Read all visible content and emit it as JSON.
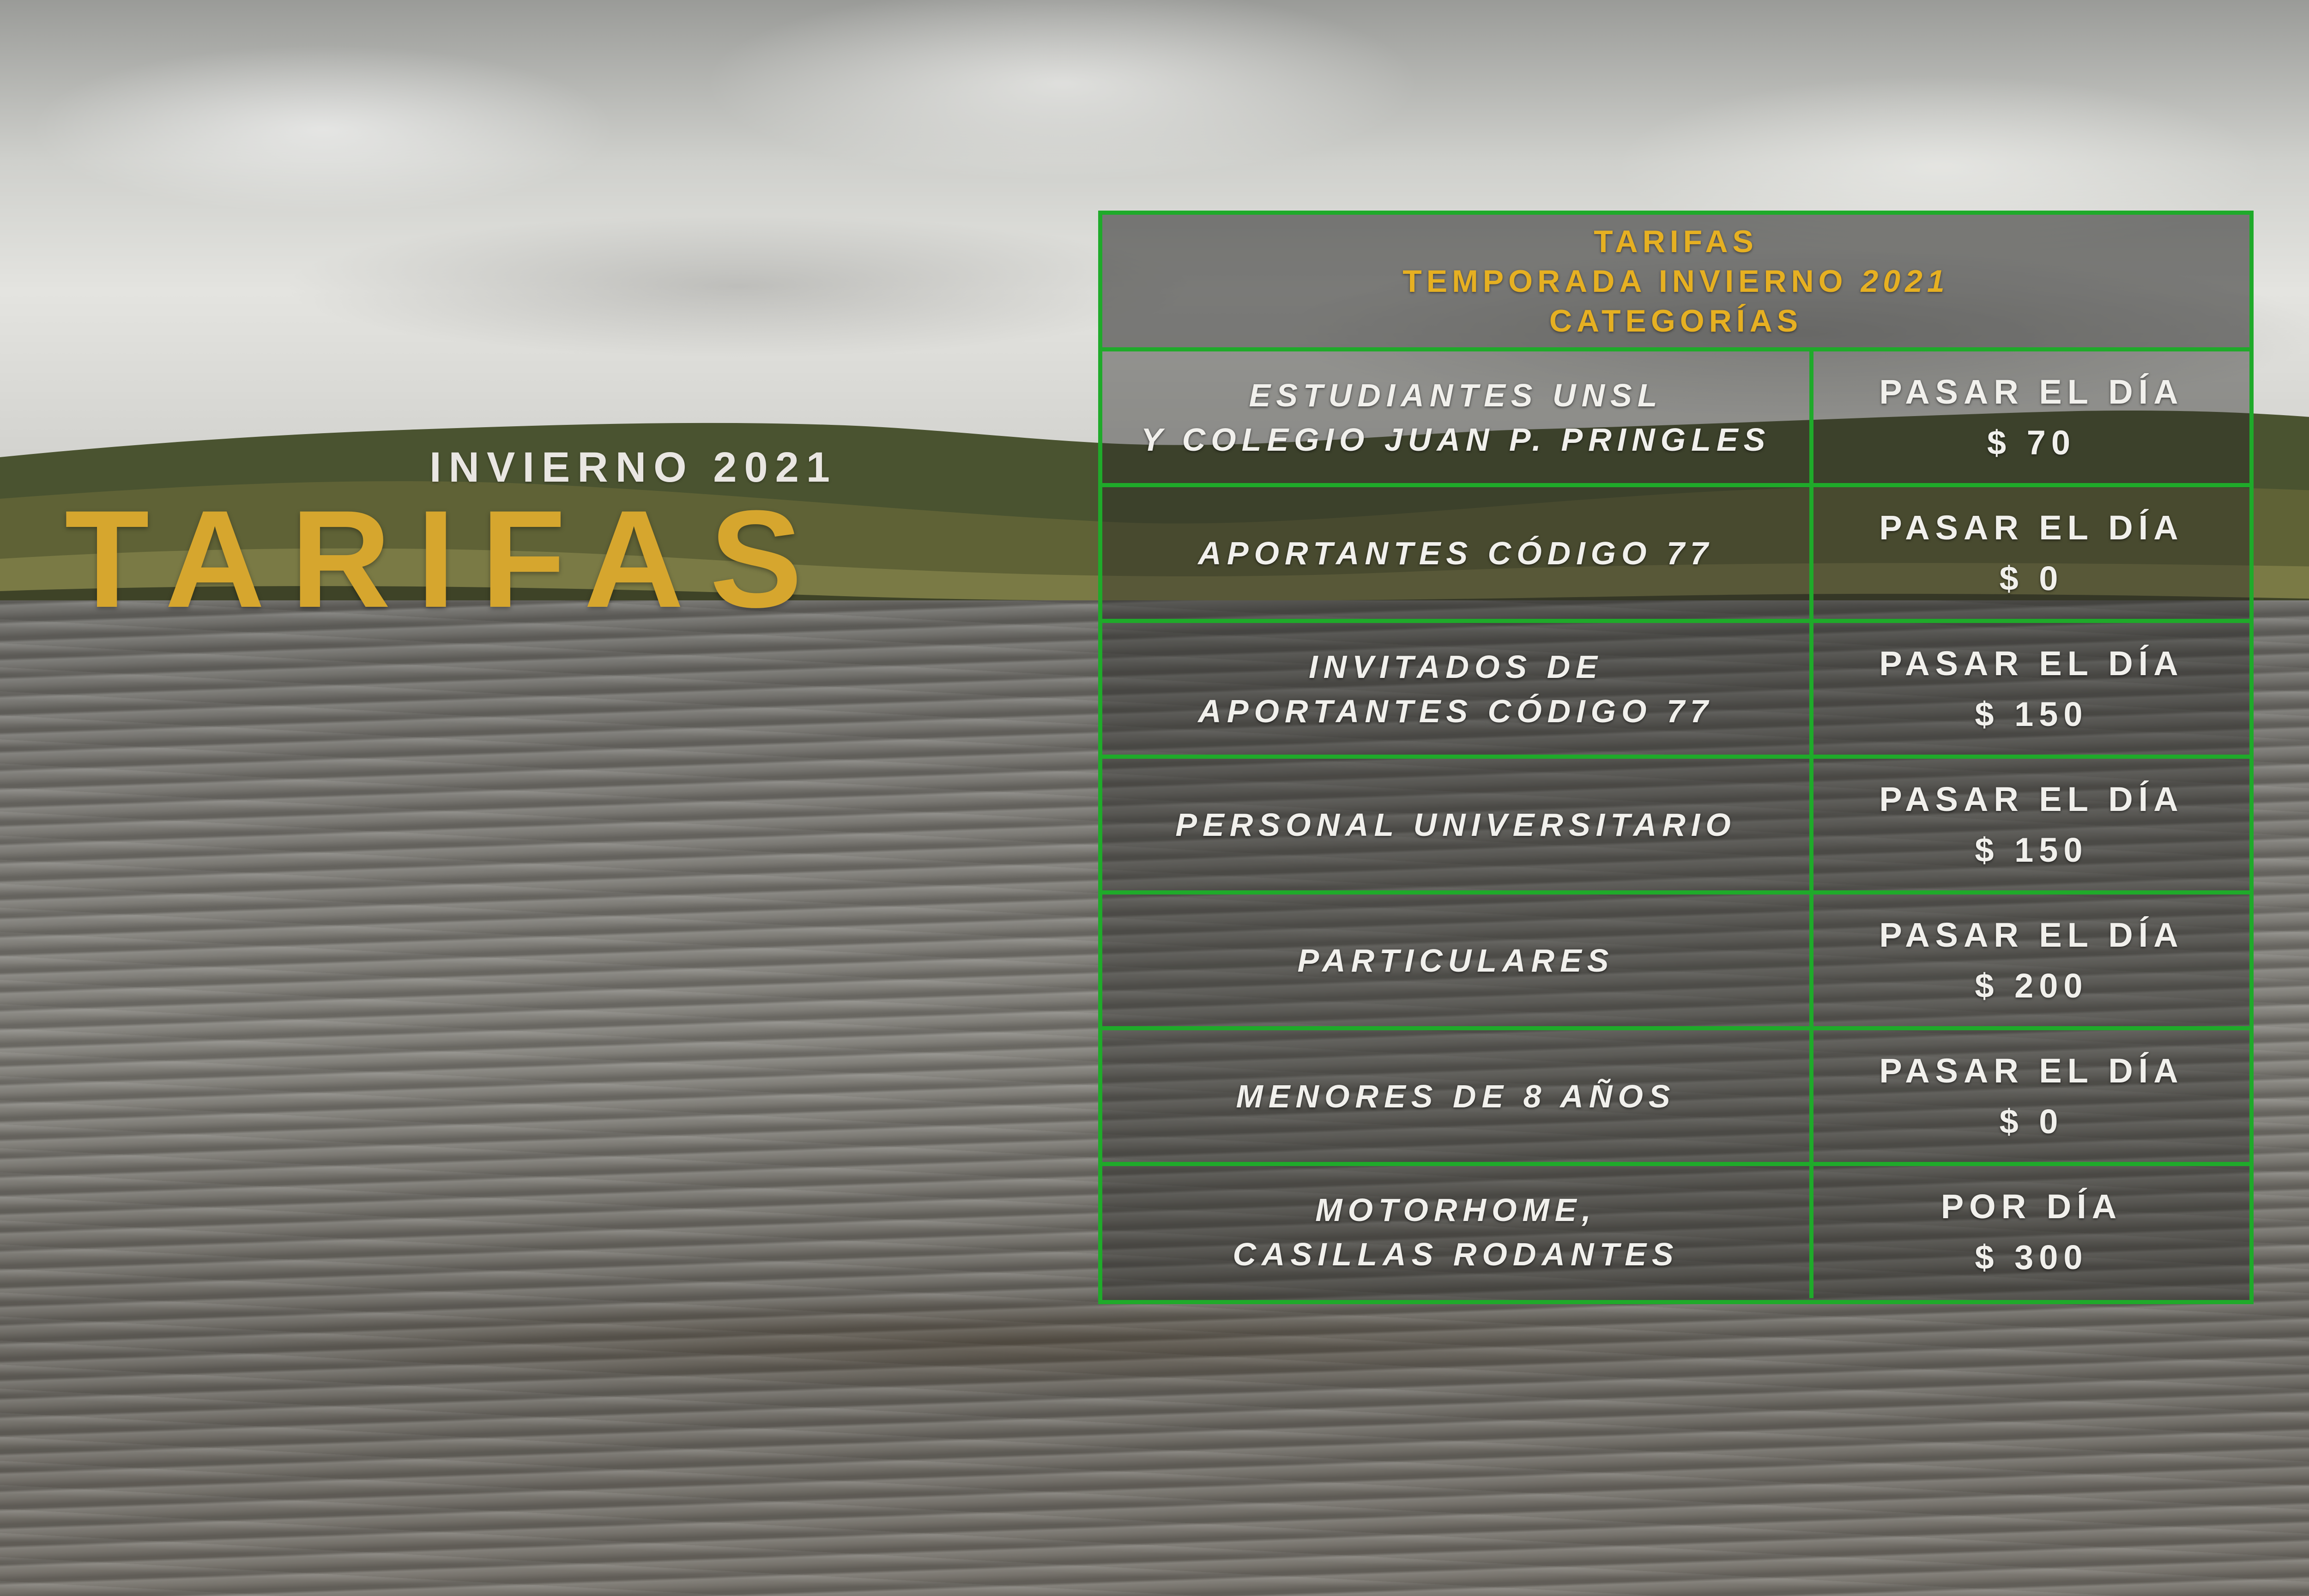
{
  "colors": {
    "accent_gold": "#d6a62e",
    "header_gold": "#e6b022",
    "border_green": "#1faa2a",
    "text_light": "#f1f0ec"
  },
  "headline": {
    "subtitle": "INVIERNO 2021",
    "title": "TARIFAS"
  },
  "table": {
    "header": {
      "line1": "TARIFAS",
      "line2_text": "TEMPORADA INVIERNO ",
      "line2_year": "2021",
      "line3": "CATEGORÍAS"
    },
    "rows": [
      {
        "category": [
          "ESTUDIANTES UNSL",
          "Y COLEGIO JUAN P. PRINGLES"
        ],
        "period": "PASAR EL DÍA",
        "price": "$ 70"
      },
      {
        "category": [
          "APORTANTES CÓDIGO 77"
        ],
        "period": "PASAR EL DÍA",
        "price": "$ 0"
      },
      {
        "category": [
          "INVITADOS DE",
          "APORTANTES CÓDIGO 77"
        ],
        "period": "PASAR EL DÍA",
        "price": "$ 150"
      },
      {
        "category": [
          "PERSONAL UNIVERSITARIO"
        ],
        "period": "PASAR EL DÍA",
        "price": "$ 150"
      },
      {
        "category": [
          "PARTICULARES"
        ],
        "period": "PASAR EL DÍA",
        "price": "$ 200"
      },
      {
        "category": [
          "MENORES DE 8 AÑOS"
        ],
        "period": "PASAR EL DÍA",
        "price": "$ 0"
      },
      {
        "category": [
          "MOTORHOME,",
          "CASILLAS RODANTES"
        ],
        "period": "POR DÍA",
        "price": "$ 300"
      }
    ]
  }
}
